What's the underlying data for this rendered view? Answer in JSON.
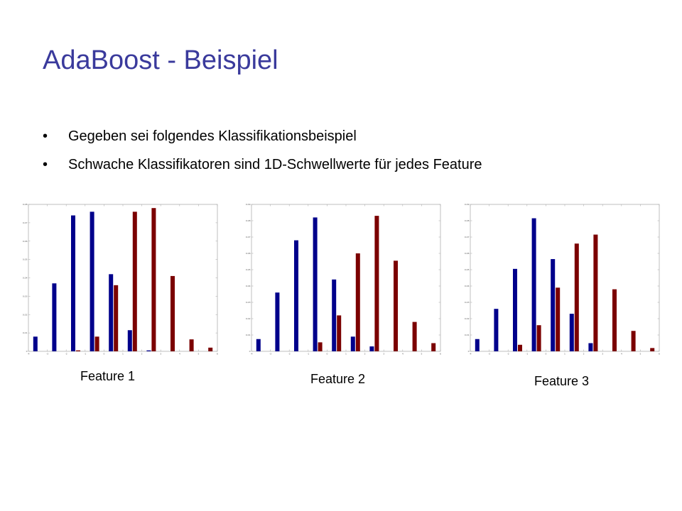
{
  "slide": {
    "title": "AdaBoost - Beispiel",
    "bullets": [
      {
        "marker": "•",
        "text": "Gegeben sei folgendes Klassifikationsbeispiel"
      },
      {
        "marker": "•",
        "text": "Schwache Klassifikatoren sind 1D-Schwellwerte für jedes Feature"
      }
    ],
    "title_color": "#3a3a9c"
  },
  "colors": {
    "series_a": "#00008b",
    "series_b": "#7b0000"
  },
  "chart_data": [
    {
      "type": "bar",
      "label": "Feature 1",
      "ylim": [
        0,
        0.08
      ],
      "yticks": [
        "0",
        "0.01",
        "0.02",
        "0.03",
        "0.04",
        "0.05",
        "0.06",
        "0.07",
        "0.08"
      ],
      "xlim": [
        -4,
        6
      ],
      "xticks": [
        "-4",
        "-3",
        "-2",
        "-1",
        "0",
        "1",
        "2",
        "3",
        "4",
        "5",
        "6"
      ],
      "x": [
        -3.5,
        -2.5,
        -1.5,
        -0.5,
        0.5,
        1.5,
        2.5,
        3.5,
        4.5,
        5.5
      ],
      "series": [
        {
          "color": "#00008b",
          "values": [
            0.008,
            0.037,
            0.074,
            0.076,
            0.042,
            0.0115,
            0.0005,
            0,
            0,
            0
          ]
        },
        {
          "color": "#7b0000",
          "values": [
            0,
            0,
            0.0005,
            0.008,
            0.036,
            0.076,
            0.078,
            0.041,
            0.0065,
            0.002
          ]
        }
      ]
    },
    {
      "type": "bar",
      "label": "Feature 2",
      "ylim": [
        0,
        0.09
      ],
      "yticks": [
        "0",
        "0.01",
        "0.02",
        "0.03",
        "0.04",
        "0.05",
        "0.06",
        "0.07",
        "0.08",
        "0.09"
      ],
      "xlim": [
        -4,
        6
      ],
      "xticks": [
        "-4",
        "-3",
        "-2",
        "-1",
        "0",
        "1",
        "2",
        "3",
        "4",
        "5",
        "6"
      ],
      "x": [
        -3.5,
        -2.5,
        -1.5,
        -0.5,
        0.5,
        1.5,
        2.5,
        3.5,
        4.5,
        5.5
      ],
      "series": [
        {
          "color": "#00008b",
          "values": [
            0.0075,
            0.036,
            0.068,
            0.082,
            0.044,
            0.009,
            0.003,
            0,
            0,
            0
          ]
        },
        {
          "color": "#7b0000",
          "values": [
            0,
            0,
            0,
            0.0055,
            0.022,
            0.06,
            0.083,
            0.0555,
            0.018,
            0.005
          ]
        }
      ]
    },
    {
      "type": "bar",
      "label": "Feature 3",
      "ylim": [
        0,
        0.09
      ],
      "yticks": [
        "0",
        "0.01",
        "0.02",
        "0.03",
        "0.04",
        "0.05",
        "0.06",
        "0.07",
        "0.08",
        "0.09"
      ],
      "xlim": [
        -4,
        6
      ],
      "xticks": [
        "-4",
        "-3",
        "-2",
        "-1",
        "0",
        "1",
        "2",
        "3",
        "4",
        "5",
        "6"
      ],
      "x": [
        -3.5,
        -2.5,
        -1.5,
        -0.5,
        0.5,
        1.5,
        2.5,
        3.5,
        4.5,
        5.5
      ],
      "series": [
        {
          "color": "#00008b",
          "values": [
            0.0075,
            0.026,
            0.0505,
            0.0815,
            0.0565,
            0.023,
            0.005,
            0,
            0,
            0
          ]
        },
        {
          "color": "#7b0000",
          "values": [
            0,
            0,
            0.004,
            0.016,
            0.039,
            0.066,
            0.0715,
            0.038,
            0.0125,
            0.002
          ]
        }
      ]
    }
  ]
}
